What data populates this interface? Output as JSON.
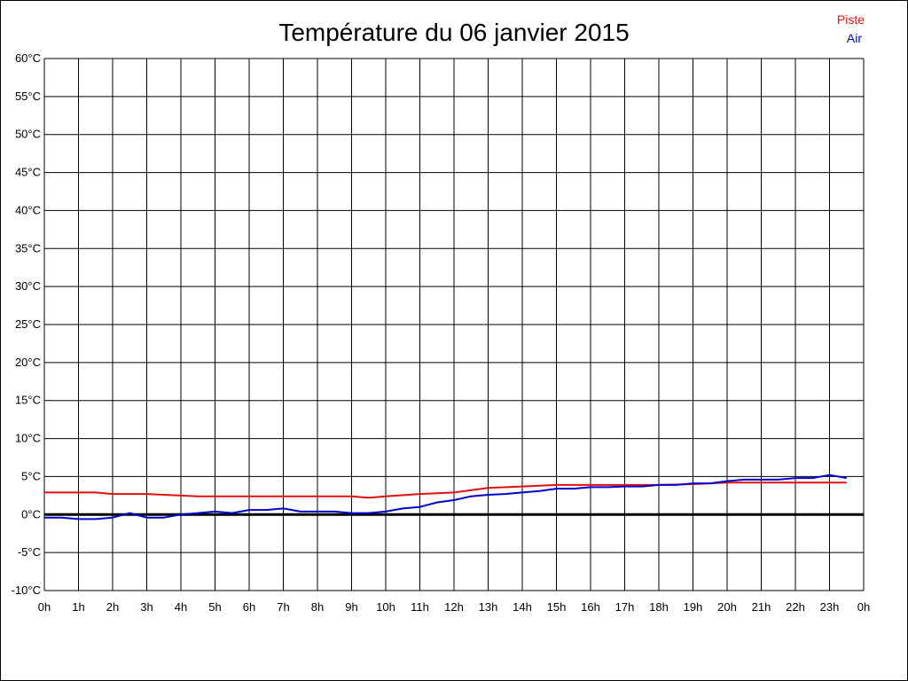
{
  "chart_data": {
    "type": "line",
    "title": "Température du 06 janvier 2015",
    "ylim": [
      -10,
      60
    ],
    "y_ticks": [
      "60°C",
      "55°C",
      "50°C",
      "45°C",
      "40°C",
      "35°C",
      "30°C",
      "25°C",
      "20°C",
      "15°C",
      "10°C",
      "5°C",
      "0°C",
      "-5°C",
      "-10°C"
    ],
    "x_ticks": [
      "0h",
      "1h",
      "2h",
      "3h",
      "4h",
      "5h",
      "6h",
      "7h",
      "8h",
      "9h",
      "10h",
      "11h",
      "12h",
      "13h",
      "14h",
      "15h",
      "16h",
      "17h",
      "18h",
      "19h",
      "20h",
      "21h",
      "22h",
      "23h",
      "0h"
    ],
    "grid": true,
    "legend_position": "top-right",
    "series": [
      {
        "name": "Piste",
        "color": "#e01010",
        "x": [
          0,
          1,
          1.5,
          2,
          3,
          4,
          4.5,
          5,
          6,
          7,
          8,
          9,
          9.5,
          10,
          11,
          12,
          13,
          14,
          15,
          16,
          17,
          18,
          19,
          20,
          21,
          22,
          23,
          23.5
        ],
        "y": [
          2.9,
          2.9,
          2.9,
          2.7,
          2.7,
          2.5,
          2.4,
          2.4,
          2.4,
          2.4,
          2.4,
          2.4,
          2.2,
          2.4,
          2.7,
          2.9,
          3.5,
          3.7,
          3.9,
          3.9,
          3.9,
          3.9,
          4.0,
          4.2,
          4.2,
          4.2,
          4.2,
          4.2
        ]
      },
      {
        "name": "Air",
        "color": "#0000cc",
        "x": [
          0,
          0.5,
          1,
          1.5,
          2,
          2.5,
          3,
          3.5,
          4,
          4.5,
          5,
          5.5,
          6,
          6.5,
          7,
          7.5,
          8,
          8.5,
          9,
          9.5,
          10,
          10.5,
          11,
          11.5,
          12,
          12.5,
          13,
          13.5,
          14,
          14.5,
          15,
          15.5,
          16,
          16.5,
          17,
          17.5,
          18,
          18.5,
          19,
          19.5,
          20,
          20.5,
          21,
          21.5,
          22,
          22.5,
          23,
          23.5
        ],
        "y": [
          -0.4,
          -0.4,
          -0.6,
          -0.6,
          -0.4,
          0.2,
          -0.4,
          -0.4,
          0,
          0.2,
          0.4,
          0.2,
          0.6,
          0.6,
          0.8,
          0.4,
          0.4,
          0.4,
          0.2,
          0.2,
          0.4,
          0.8,
          1.0,
          1.6,
          1.9,
          2.4,
          2.6,
          2.7,
          2.9,
          3.1,
          3.4,
          3.4,
          3.6,
          3.6,
          3.7,
          3.7,
          3.9,
          3.9,
          4.1,
          4.1,
          4.4,
          4.6,
          4.6,
          4.6,
          4.8,
          4.8,
          5.2,
          4.8
        ]
      }
    ]
  }
}
